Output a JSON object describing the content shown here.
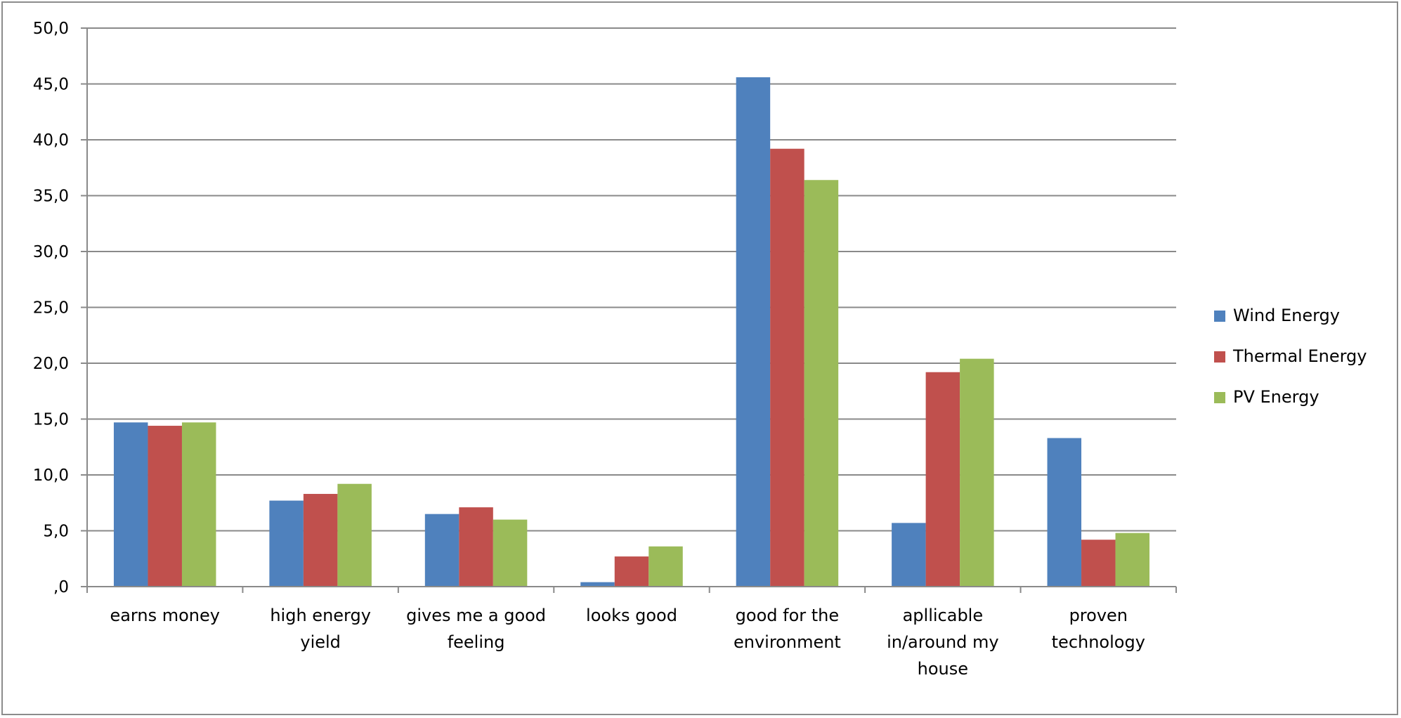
{
  "chart_data": {
    "type": "bar",
    "categories": [
      [
        "earns money"
      ],
      [
        "high energy",
        "yield"
      ],
      [
        "gives me  a good",
        "feeling"
      ],
      [
        "looks good"
      ],
      [
        "good for the",
        "environment"
      ],
      [
        "apllicable",
        "in/around my",
        "house"
      ],
      [
        "proven",
        "technology"
      ]
    ],
    "series": [
      {
        "name": "Wind Energy",
        "color": "#4f81bd",
        "values": [
          14.7,
          7.7,
          6.5,
          0.4,
          45.6,
          5.7,
          13.3
        ]
      },
      {
        "name": "Thermal Energy",
        "color": "#c0504d",
        "values": [
          14.4,
          8.3,
          7.1,
          2.7,
          39.2,
          19.2,
          4.2
        ]
      },
      {
        "name": "PV Energy",
        "color": "#9bbb59",
        "values": [
          14.7,
          9.2,
          6.0,
          3.6,
          36.4,
          20.4,
          4.8
        ]
      }
    ],
    "y_ticks": [
      ",0",
      "5,0",
      "10,0",
      "15,0",
      "20,0",
      "25,0",
      "30,0",
      "35,0",
      "40,0",
      "45,0",
      "50,0"
    ],
    "ylim": [
      0,
      50
    ],
    "grid": true,
    "legend_position": "right"
  }
}
